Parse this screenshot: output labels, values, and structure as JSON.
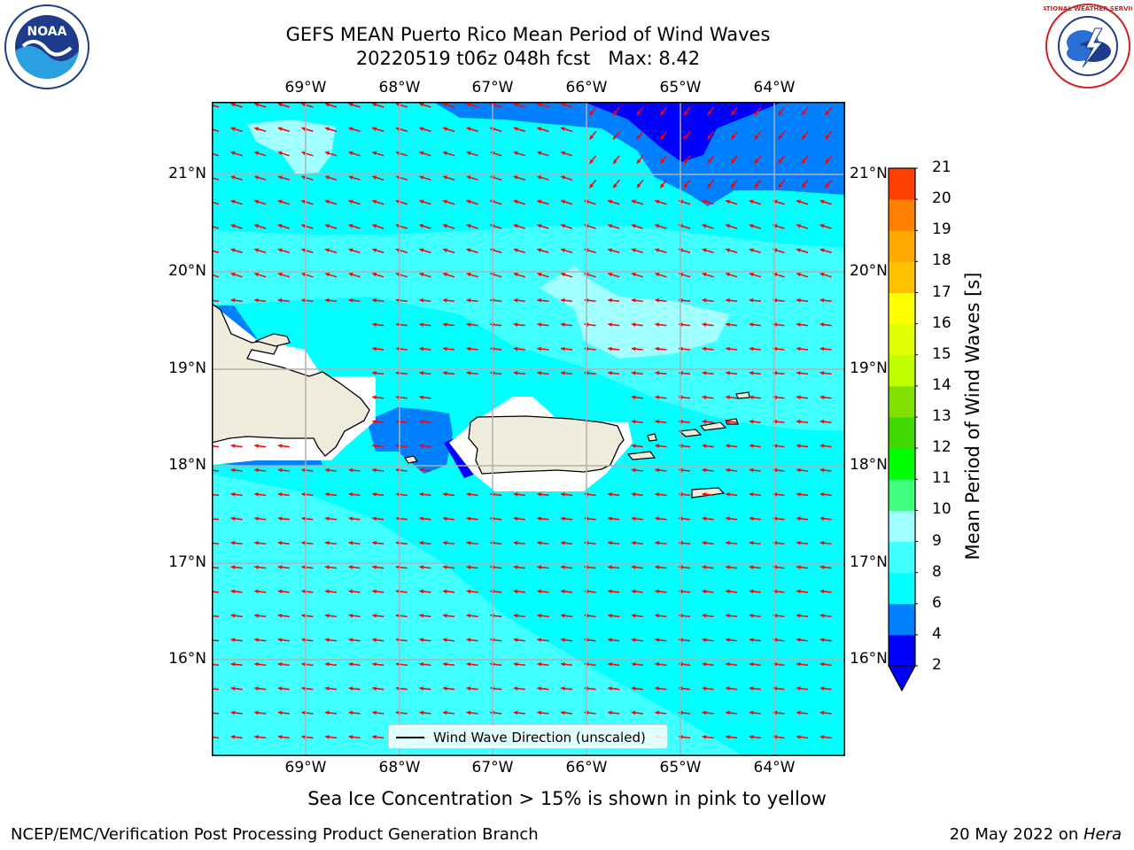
{
  "title": {
    "line1": "GEFS MEAN Puerto Rico Mean Period of Wind Waves",
    "line2": "20220519 t06z 048h fcst   Max: 8.42"
  },
  "logos": {
    "left": {
      "name": "noaa-logo",
      "text": "NOAA"
    },
    "right": {
      "name": "nws-logo",
      "text": "NATIONAL WEATHER SERVICE"
    }
  },
  "map": {
    "lon_ticks": [
      "69°W",
      "68°W",
      "67°W",
      "66°W",
      "65°W",
      "64°W"
    ],
    "lat_ticks": [
      "21°N",
      "20°N",
      "19°N",
      "18°N",
      "17°N",
      "16°N"
    ],
    "land_color": "#efecdc",
    "vector_color": "#ff0000",
    "grid": true
  },
  "colorbar": {
    "title": "Mean Period of Wind Waves [s]",
    "levels": [
      "2",
      "4",
      "6",
      "8",
      "9",
      "10",
      "11",
      "12",
      "13",
      "14",
      "15",
      "16",
      "17",
      "18",
      "19",
      "20",
      "21"
    ],
    "colors": [
      "#0000ff",
      "#0080ff",
      "#00ffff",
      "#40ffff",
      "#a0ffff",
      "#40ff80",
      "#00ff00",
      "#40d800",
      "#80e000",
      "#c0ff00",
      "#e0ff00",
      "#ffff00",
      "#ffc000",
      "#ffa800",
      "#ff8000",
      "#ff4000",
      "#ff0000"
    ],
    "extend_below_color": "#0000ff"
  },
  "legend": {
    "label": "Wind Wave Direction (unscaled)"
  },
  "subcaption": "Sea Ice Concentration > 15% is shown in pink to yellow",
  "footer": {
    "left": "NCEP/EMC/Verification Post Processing Product Generation Branch",
    "right_date": "20 May 2022 on ",
    "right_host": "Hera"
  }
}
